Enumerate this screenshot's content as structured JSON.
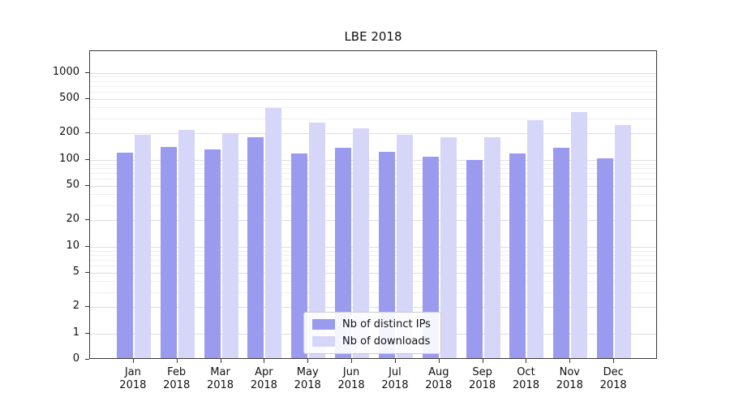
{
  "chart_data": {
    "type": "bar",
    "title": "LBE 2018",
    "categories": [
      "Jan 2018",
      "Feb 2018",
      "Mar 2018",
      "Apr 2018",
      "May 2018",
      "Jun 2018",
      "Jul 2018",
      "Aug 2018",
      "Sep 2018",
      "Oct 2018",
      "Nov 2018",
      "Dec 2018"
    ],
    "series": [
      {
        "name": "Nb of distinct IPs",
        "color": "#9a9aee",
        "values": [
          115,
          135,
          125,
          175,
          112,
          130,
          118,
          104,
          96,
          112,
          130,
          100
        ]
      },
      {
        "name": "Nb of downloads",
        "color": "#d6d6f8",
        "values": [
          185,
          210,
          195,
          380,
          255,
          220,
          185,
          175,
          175,
          270,
          340,
          240
        ]
      }
    ],
    "y_ticks": [
      0,
      1,
      2,
      5,
      10,
      20,
      50,
      100,
      200,
      500,
      1000
    ],
    "y_minor_ticks": [
      3,
      4,
      6,
      7,
      8,
      9,
      30,
      40,
      60,
      70,
      80,
      90,
      300,
      400,
      600,
      700,
      800,
      900
    ],
    "scale": "symlog",
    "ylim": [
      0,
      1500
    ],
    "xlabel": "",
    "ylabel": "",
    "grid": true,
    "legend_position": "bottom-center"
  }
}
